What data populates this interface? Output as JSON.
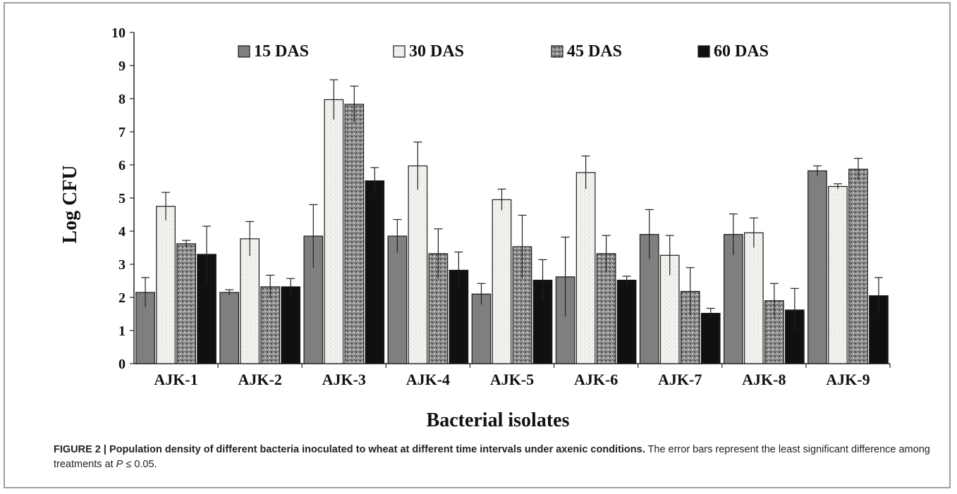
{
  "chart_data": {
    "type": "bar",
    "xlabel": "Bacterial isolates",
    "ylabel": "Log CFU",
    "ylim": [
      0,
      10
    ],
    "yticks": [
      "0",
      "1",
      "2",
      "3",
      "4",
      "5",
      "6",
      "7",
      "8",
      "9",
      "10"
    ],
    "categories": [
      "AJK-1",
      "AJK-2",
      "AJK-3",
      "AJK-4",
      "AJK-5",
      "AJK-6",
      "AJK-7",
      "AJK-8",
      "AJK-9"
    ],
    "legend_position": "top",
    "grid": false,
    "series": [
      {
        "name": "15 DAS",
        "color": "#7f7f7f",
        "pattern": "solid-gray",
        "values": [
          2.15,
          2.15,
          3.85,
          3.85,
          2.1,
          2.62,
          3.9,
          3.9,
          5.82
        ],
        "errors": [
          0.45,
          0.08,
          0.95,
          0.5,
          0.32,
          1.2,
          0.75,
          0.62,
          0.15
        ]
      },
      {
        "name": "30 DAS",
        "color": "#f0f0ec",
        "pattern": "light-speckle",
        "values": [
          4.75,
          3.77,
          7.97,
          5.97,
          4.95,
          5.77,
          3.27,
          3.95,
          5.35
        ],
        "errors": [
          0.42,
          0.52,
          0.6,
          0.72,
          0.32,
          0.5,
          0.6,
          0.45,
          0.08
        ]
      },
      {
        "name": "45 DAS",
        "color": "#8a8a8a",
        "pattern": "dark-speckle",
        "values": [
          3.62,
          2.32,
          7.83,
          3.32,
          3.53,
          3.32,
          2.18,
          1.9,
          5.87
        ],
        "errors": [
          0.1,
          0.35,
          0.55,
          0.75,
          0.95,
          0.55,
          0.72,
          0.52,
          0.33
        ]
      },
      {
        "name": "60 DAS",
        "color": "#101010",
        "pattern": "solid-black",
        "values": [
          3.3,
          2.32,
          5.52,
          2.82,
          2.52,
          2.52,
          1.52,
          1.62,
          2.05
        ],
        "errors": [
          0.85,
          0.25,
          0.4,
          0.55,
          0.62,
          0.12,
          0.15,
          0.65,
          0.55
        ]
      }
    ]
  },
  "caption": {
    "figure_label": "FIGURE 2 | Population density of different bacteria inoculated to wheat at different time intervals under axenic conditions.",
    "text_1": " The error bars represent the least significant difference among treatments at ",
    "p_symbol": "P",
    "text_2": " ≤ 0.05."
  }
}
